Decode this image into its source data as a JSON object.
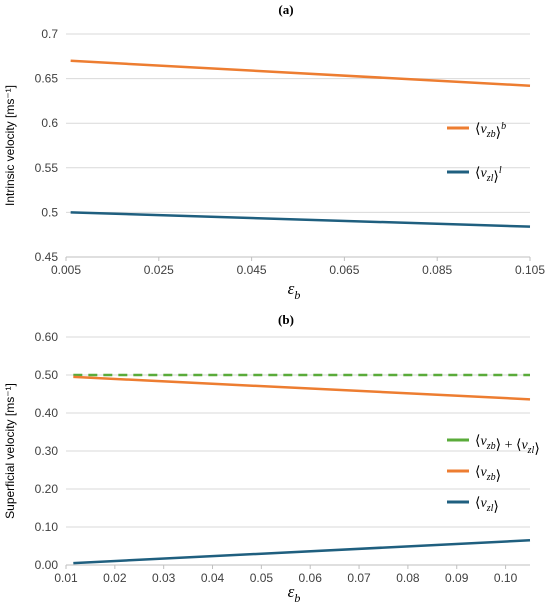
{
  "chart_data": [
    {
      "panel_label": "(a)",
      "type": "line",
      "ylabel": "Intrinsic velocity [ms⁻¹]",
      "xlabel": "ε",
      "xlabel_sub": "b",
      "xlim": [
        0.005,
        0.105
      ],
      "ylim": [
        0.45,
        0.7
      ],
      "x_ticks": [
        "0.005",
        "0.025",
        "0.045",
        "0.065",
        "0.085",
        "0.105"
      ],
      "y_ticks": [
        "0.45",
        "0.5",
        "0.55",
        "0.6",
        "0.65",
        "0.7"
      ],
      "grid": "horizontal",
      "legend_position": "right",
      "series": [
        {
          "name": "⟨v_zb⟩^b",
          "color": "#ed7d31",
          "dashed": false,
          "x": [
            0.006,
            0.105
          ],
          "values": [
            0.67,
            0.642
          ]
        },
        {
          "name": "⟨v_zl⟩^l",
          "color": "#1f5f7f",
          "dashed": false,
          "x": [
            0.006,
            0.105
          ],
          "values": [
            0.5,
            0.484
          ]
        }
      ]
    },
    {
      "panel_label": "(b)",
      "type": "line",
      "ylabel": "Superficial velocity [ms⁻¹]",
      "xlabel": "ε",
      "xlabel_sub": "b",
      "xlim": [
        0.01,
        0.105
      ],
      "ylim": [
        0,
        0.6
      ],
      "x_ticks": [
        "0.01",
        "0.02",
        "0.03",
        "0.04",
        "0.05",
        "0.06",
        "0.07",
        "0.08",
        "0.09",
        "0.10"
      ],
      "y_ticks": [
        "0.00",
        "0.10",
        "0.20",
        "0.30",
        "0.40",
        "0.50",
        "0.60"
      ],
      "grid": "horizontal",
      "legend_position": "right",
      "series": [
        {
          "name": "⟨v_zb⟩ + ⟨v_zl⟩",
          "color": "#5aab3a",
          "dashed": true,
          "x": [
            0.0115,
            0.105
          ],
          "values": [
            0.5,
            0.5
          ]
        },
        {
          "name": "⟨v_zb⟩",
          "color": "#ed7d31",
          "dashed": false,
          "x": [
            0.0115,
            0.105
          ],
          "values": [
            0.495,
            0.436
          ]
        },
        {
          "name": "⟨v_zl⟩",
          "color": "#1f5f7f",
          "dashed": false,
          "x": [
            0.0115,
            0.105
          ],
          "values": [
            0.005,
            0.065
          ]
        }
      ]
    }
  ]
}
